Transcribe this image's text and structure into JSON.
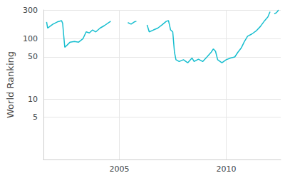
{
  "chart_data": {
    "type": "line",
    "y_label": "World Ranking",
    "log": "y",
    "grid": true,
    "color": "#17becf",
    "x": [
      2001.6,
      2001.65,
      2001.75,
      2001.9,
      2002.1,
      2002.3,
      2002.35,
      2002.45,
      2002.55,
      2002.7,
      2002.9,
      2003.1,
      2003.3,
      2003.45,
      2003.6,
      2003.75,
      2003.9,
      2004.1,
      2004.3,
      2004.5,
      2004.6,
      2004.9,
      2005.4,
      2005.55,
      2005.7,
      2005.8,
      2006.0,
      2006.3,
      2006.4,
      2006.6,
      2006.8,
      2007.0,
      2007.2,
      2007.3,
      2007.4,
      2007.5,
      2007.58,
      2007.65,
      2007.8,
      2008.0,
      2008.2,
      2008.4,
      2008.5,
      2008.7,
      2008.9,
      2009.1,
      2009.3,
      2009.4,
      2009.5,
      2009.6,
      2009.8,
      2010.0,
      2010.2,
      2010.4,
      2010.55,
      2010.7,
      2010.85,
      2011.0,
      2011.2,
      2011.4,
      2011.6,
      2011.8,
      2011.95,
      2012.05,
      2012.1,
      2012.25,
      2012.35,
      2012.45
    ],
    "values": [
      190,
      150,
      160,
      175,
      190,
      200,
      180,
      72,
      78,
      88,
      90,
      88,
      100,
      130,
      125,
      140,
      130,
      150,
      165,
      185,
      195,
      null,
      185,
      175,
      190,
      195,
      null,
      170,
      130,
      140,
      150,
      170,
      195,
      200,
      140,
      130,
      60,
      45,
      42,
      45,
      40,
      48,
      42,
      46,
      42,
      50,
      60,
      68,
      62,
      45,
      40,
      45,
      48,
      50,
      60,
      70,
      90,
      110,
      120,
      135,
      160,
      200,
      230,
      280,
      null,
      260,
      270,
      300
    ],
    "xlim": [
      2001.45,
      2012.55
    ],
    "xticks": [
      2005,
      2010
    ],
    "ylim": [
      1,
      300
    ],
    "yticks": [
      5,
      10,
      50,
      100,
      300
    ]
  }
}
